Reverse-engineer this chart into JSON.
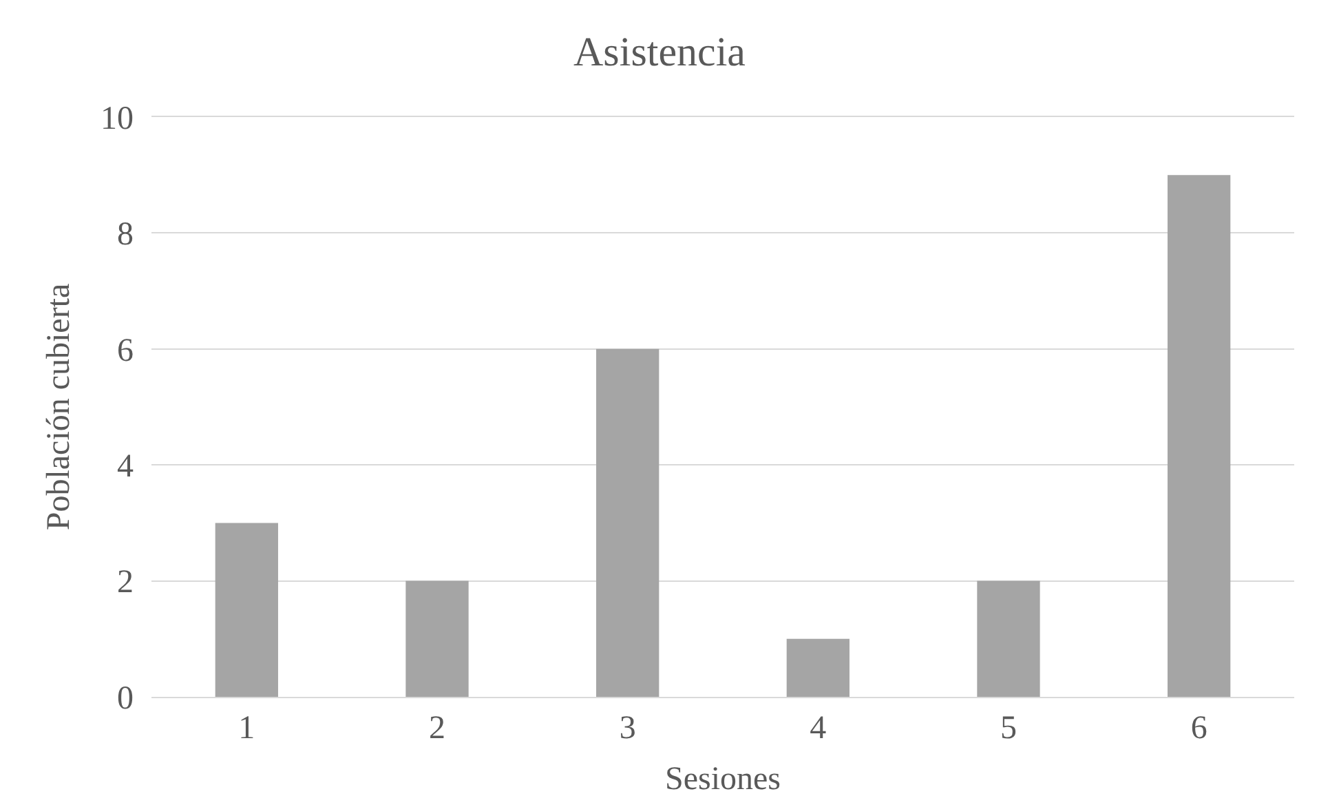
{
  "chart_data": {
    "type": "bar",
    "title": "Asistencia",
    "xlabel": "Sesiones",
    "ylabel": "Población cubierta",
    "categories": [
      "1",
      "2",
      "3",
      "4",
      "5",
      "6"
    ],
    "values": [
      3,
      2,
      6,
      1,
      2,
      9
    ],
    "color": "#a5a5a5",
    "ylim": [
      0,
      10
    ],
    "yticks": [
      0,
      2,
      4,
      6,
      8,
      10
    ],
    "grid": "y"
  }
}
